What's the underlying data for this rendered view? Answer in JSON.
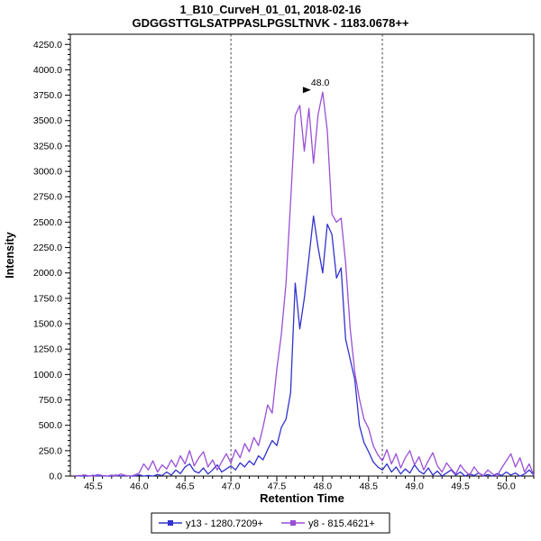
{
  "chart_data": {
    "type": "line",
    "title": "1_B10_CurveH_01_01, 2018-02-16",
    "subtitle": "GDGGSTTGLSATPPASLPGSLTNVK - 1183.0678++",
    "xlabel": "Retention Time",
    "ylabel": "Intensity",
    "xlim": [
      45.25,
      50.3
    ],
    "ylim": [
      0,
      4350
    ],
    "x_major_tick_start": 45.5,
    "x_major_tick_step": 0.5,
    "x_major_tick_end": 50.0,
    "x_minor_tick_step": 0.1,
    "y_major_tick_step": 250,
    "y_minor_tick_step": 50,
    "y_major_tick_max": 4250,
    "grid": false,
    "legend_position": "bottom-center",
    "boundaries": [
      47.0,
      48.65
    ],
    "boundary_style": "dashed",
    "annotation": {
      "text": "48.0",
      "x": 48.0,
      "y": 3780,
      "color": "#3333cc"
    },
    "x_start": 45.3,
    "x_step": 0.05,
    "series": [
      {
        "name": "y13 - 1280.7209+",
        "color": "#3232cd",
        "values": [
          0,
          5,
          0,
          0,
          8,
          0,
          3,
          0,
          0,
          10,
          0,
          5,
          0,
          0,
          12,
          0,
          6,
          0,
          15,
          5,
          40,
          10,
          60,
          25,
          90,
          120,
          50,
          30,
          80,
          20,
          60,
          110,
          40,
          70,
          100,
          60,
          130,
          90,
          150,
          110,
          200,
          160,
          260,
          350,
          300,
          480,
          560,
          820,
          1900,
          1450,
          1750,
          2150,
          2560,
          2250,
          2000,
          2480,
          2380,
          1950,
          2050,
          1350,
          1150,
          950,
          500,
          330,
          240,
          140,
          90,
          60,
          120,
          40,
          90,
          20,
          70,
          30,
          110,
          50,
          20,
          80,
          10,
          50,
          0,
          30,
          60,
          10,
          40,
          0,
          20,
          5,
          30,
          0,
          15,
          0,
          25,
          5,
          40,
          10,
          30,
          0,
          20,
          60,
          10
        ]
      },
      {
        "name": "y8 - 815.4621+",
        "color": "#9a4fd6",
        "values": [
          5,
          0,
          12,
          3,
          0,
          15,
          5,
          0,
          10,
          0,
          20,
          5,
          0,
          10,
          30,
          120,
          60,
          150,
          40,
          110,
          70,
          160,
          90,
          200,
          120,
          250,
          100,
          180,
          240,
          90,
          160,
          60,
          140,
          220,
          130,
          260,
          180,
          320,
          240,
          380,
          300,
          480,
          700,
          620,
          1050,
          1400,
          1900,
          2700,
          3550,
          3650,
          3200,
          3620,
          3080,
          3560,
          3780,
          3400,
          2580,
          2500,
          2540,
          2100,
          1450,
          1020,
          760,
          560,
          470,
          300,
          210,
          150,
          260,
          120,
          220,
          80,
          180,
          250,
          110,
          190,
          60,
          150,
          230,
          100,
          40,
          130,
          70,
          20,
          110,
          50,
          10,
          90,
          30,
          5,
          60,
          20,
          0,
          80,
          150,
          220,
          90,
          180,
          40,
          120,
          10
        ]
      }
    ]
  }
}
